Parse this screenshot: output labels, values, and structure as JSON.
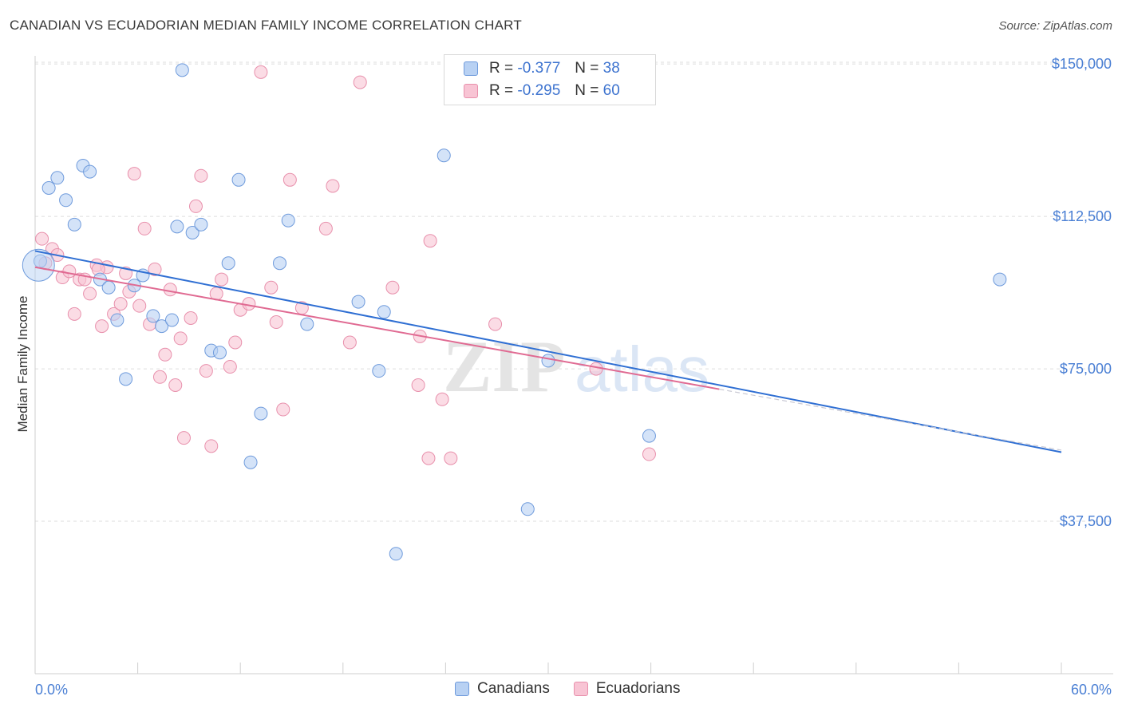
{
  "title": "CANADIAN VS ECUADORIAN MEDIAN FAMILY INCOME CORRELATION CHART",
  "source": "Source: ZipAtlas.com",
  "watermark": {
    "zip": "ZIP",
    "atlas": "atlas"
  },
  "legend": {
    "canadians": {
      "r_label": "R =",
      "r_value": "-0.377",
      "n_label": "N =",
      "n_value": "38"
    },
    "ecuadorians": {
      "r_label": "R =",
      "r_value": "-0.295",
      "n_label": "N =",
      "n_value": "60"
    }
  },
  "bottom_legend": {
    "canadians": "Canadians",
    "ecuadorians": "Ecuadorians"
  },
  "colors": {
    "blue_fill": "#b8d1f3",
    "blue_stroke": "#6f9bdc",
    "blue_line": "#2f6fd3",
    "pink_fill": "#f8c4d4",
    "pink_stroke": "#e890ac",
    "pink_line": "#e06a92",
    "axis_text": "#4a7fd4",
    "grid": "#dedede"
  },
  "chart_data": {
    "type": "scatter",
    "title": "CANADIAN VS ECUADORIAN MEDIAN FAMILY INCOME CORRELATION CHART",
    "ylabel": "Median Family Income",
    "xlabel": "",
    "xlim": [
      0,
      60
    ],
    "ylim": [
      0,
      152000
    ],
    "x_tick_labels": [
      "0.0%",
      "60.0%"
    ],
    "y_ticks": [
      37500,
      75000,
      112500,
      150000
    ],
    "y_tick_labels": [
      "$37,500",
      "$75,000",
      "$112,500",
      "$150,000"
    ],
    "grid": true,
    "series": [
      {
        "name": "Canadians",
        "points": [
          [
            0.3,
            101500
          ],
          [
            0.8,
            119500
          ],
          [
            1.3,
            122000
          ],
          [
            1.8,
            116500
          ],
          [
            2.3,
            110500
          ],
          [
            2.8,
            125000
          ],
          [
            3.2,
            123500
          ],
          [
            3.8,
            97000
          ],
          [
            4.3,
            95000
          ],
          [
            4.8,
            87000
          ],
          [
            5.3,
            72500
          ],
          [
            5.8,
            95500
          ],
          [
            6.3,
            98000
          ],
          [
            6.9,
            88000
          ],
          [
            7.4,
            85500
          ],
          [
            8.0,
            87000
          ],
          [
            8.3,
            110000
          ],
          [
            8.6,
            148500
          ],
          [
            9.2,
            108500
          ],
          [
            9.7,
            110500
          ],
          [
            10.3,
            79500
          ],
          [
            10.8,
            79000
          ],
          [
            11.3,
            101000
          ],
          [
            11.9,
            121500
          ],
          [
            12.6,
            52000
          ],
          [
            13.2,
            64000
          ],
          [
            14.3,
            101000
          ],
          [
            14.8,
            111500
          ],
          [
            15.9,
            86000
          ],
          [
            18.9,
            91500
          ],
          [
            20.1,
            74500
          ],
          [
            20.4,
            89000
          ],
          [
            23.9,
            127500
          ],
          [
            28.8,
            40500
          ],
          [
            30.0,
            77000
          ],
          [
            35.9,
            58500
          ],
          [
            56.4,
            97000
          ],
          [
            21.1,
            29500
          ]
        ]
      },
      {
        "name": "Ecuadorians",
        "points": [
          [
            0.4,
            107000
          ],
          [
            0.6,
            101000
          ],
          [
            1.0,
            104500
          ],
          [
            1.3,
            103000
          ],
          [
            1.6,
            97500
          ],
          [
            2.0,
            99000
          ],
          [
            2.3,
            88500
          ],
          [
            2.6,
            97000
          ],
          [
            2.9,
            97000
          ],
          [
            3.2,
            93500
          ],
          [
            3.6,
            100500
          ],
          [
            3.9,
            85500
          ],
          [
            4.2,
            100000
          ],
          [
            4.6,
            88500
          ],
          [
            5.0,
            91000
          ],
          [
            5.3,
            98500
          ],
          [
            5.5,
            94000
          ],
          [
            5.8,
            123000
          ],
          [
            6.1,
            90500
          ],
          [
            6.4,
            109500
          ],
          [
            6.7,
            86000
          ],
          [
            7.0,
            99500
          ],
          [
            7.3,
            73000
          ],
          [
            7.6,
            78500
          ],
          [
            7.9,
            94500
          ],
          [
            8.2,
            71000
          ],
          [
            8.5,
            82500
          ],
          [
            8.7,
            58000
          ],
          [
            9.1,
            87500
          ],
          [
            9.4,
            115000
          ],
          [
            9.7,
            122500
          ],
          [
            10.0,
            74500
          ],
          [
            10.3,
            56000
          ],
          [
            10.6,
            93500
          ],
          [
            10.9,
            97000
          ],
          [
            11.4,
            75500
          ],
          [
            11.7,
            81500
          ],
          [
            12.0,
            89500
          ],
          [
            12.5,
            91000
          ],
          [
            13.2,
            148000
          ],
          [
            13.8,
            95000
          ],
          [
            14.1,
            86500
          ],
          [
            14.5,
            65000
          ],
          [
            14.9,
            121500
          ],
          [
            15.6,
            90000
          ],
          [
            17.0,
            109500
          ],
          [
            17.4,
            120000
          ],
          [
            18.4,
            81500
          ],
          [
            19.0,
            145500
          ],
          [
            20.9,
            95000
          ],
          [
            22.4,
            71000
          ],
          [
            22.5,
            83000
          ],
          [
            23.1,
            106500
          ],
          [
            23.0,
            53000
          ],
          [
            23.8,
            67500
          ],
          [
            24.3,
            53000
          ],
          [
            26.9,
            86000
          ],
          [
            32.8,
            75000
          ],
          [
            35.9,
            54000
          ],
          [
            3.7,
            99500
          ]
        ]
      }
    ],
    "trend_lines": [
      {
        "name": "Canadians",
        "x": [
          0,
          60
        ],
        "y": [
          104000,
          54500
        ]
      },
      {
        "name": "Ecuadorians",
        "x": [
          0,
          40
        ],
        "y": [
          100000,
          70000
        ]
      }
    ]
  }
}
